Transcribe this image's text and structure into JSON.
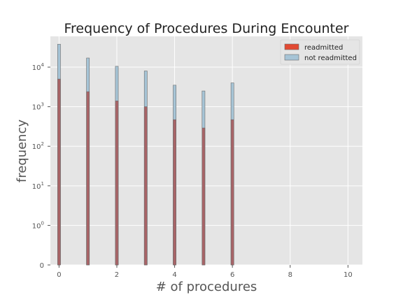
{
  "chart_data": {
    "type": "bar",
    "title": "Frequency of Procedures During Encounter",
    "xlabel": "# of procedures",
    "ylabel": "frequency",
    "xlim": [
      -0.3,
      10.5
    ],
    "xticks": [
      0,
      2,
      4,
      6,
      8,
      10
    ],
    "xtick_labels": [
      "0",
      "2",
      "4",
      "6",
      "8",
      "10"
    ],
    "yscale": "symlog",
    "ylim": [
      0,
      60000
    ],
    "yticks": [
      0,
      1,
      10,
      100,
      1000,
      10000
    ],
    "ytick_labels": [
      "0",
      "10^0",
      "10^1",
      "10^2",
      "10^3",
      "10^4"
    ],
    "grid": true,
    "legend_position": "top-right",
    "bar_width": 0.1,
    "x": [
      0,
      1,
      2,
      3,
      4,
      5,
      6
    ],
    "series": [
      {
        "name": "not readmitted",
        "color": "#A6C4D6",
        "values": [
          38000,
          17000,
          10500,
          8000,
          3500,
          2500,
          4000
        ]
      },
      {
        "name": "readmitted",
        "color": "#A86467",
        "legend_color": "#E24A33",
        "values": [
          5000,
          2400,
          1400,
          1000,
          470,
          290,
          470
        ]
      }
    ]
  }
}
